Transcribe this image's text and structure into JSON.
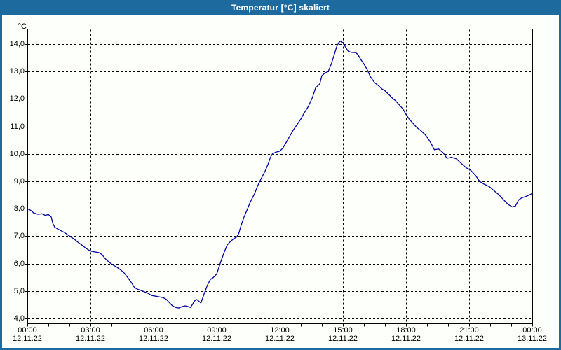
{
  "window": {
    "title": "Temperatur [°C] skaliert",
    "title_bar_color": "#1d6a9e",
    "frame_color": "#1d6a9e",
    "content_background": "#fdfffb"
  },
  "chart_data": {
    "type": "line",
    "title": "Temperatur [°C] skaliert",
    "xlabel": "",
    "ylabel": "°C",
    "ylim": [
      4.0,
      14.0
    ],
    "xlim_hours": [
      0,
      24
    ],
    "grid": "dashed-black",
    "legend": "none",
    "line_color": "#0000a0",
    "y_axis": {
      "unit": "°C",
      "ticks": [
        {
          "label": "14,0",
          "value": 14.0
        },
        {
          "label": "13,0",
          "value": 13.0
        },
        {
          "label": "12,0",
          "value": 12.0
        },
        {
          "label": "11,0",
          "value": 11.0
        },
        {
          "label": "10,0",
          "value": 10.0
        },
        {
          "label": "9,0",
          "value": 9.0
        },
        {
          "label": "8,0",
          "value": 8.0
        },
        {
          "label": "7,0",
          "value": 7.0
        },
        {
          "label": "6,0",
          "value": 6.0
        },
        {
          "label": "5,0",
          "value": 5.0
        },
        {
          "label": "4,0",
          "value": 4.0
        }
      ]
    },
    "x_axis": {
      "minor_tick_every_hours": 1,
      "ticks": [
        {
          "time": "00:00",
          "date": "12.11.22",
          "hour": 0
        },
        {
          "time": "03:00",
          "date": "12.11.22",
          "hour": 3
        },
        {
          "time": "06:00",
          "date": "12.11.22",
          "hour": 6
        },
        {
          "time": "09:00",
          "date": "12.11.22",
          "hour": 9
        },
        {
          "time": "12:00",
          "date": "12.11.22",
          "hour": 12
        },
        {
          "time": "15:00",
          "date": "12.11.22",
          "hour": 15
        },
        {
          "time": "18:00",
          "date": "12.11.22",
          "hour": 18
        },
        {
          "time": "21:00",
          "date": "12.11.22",
          "hour": 21
        },
        {
          "time": "00:00",
          "date": "13.11.22",
          "hour": 24
        }
      ]
    },
    "series_name": "Temperatur",
    "points": [
      [
        0.0,
        8.0
      ],
      [
        0.15,
        7.95
      ],
      [
        0.3,
        7.85
      ],
      [
        0.5,
        7.8
      ],
      [
        0.7,
        7.82
      ],
      [
        0.85,
        7.76
      ],
      [
        1.0,
        7.79
      ],
      [
        1.13,
        7.71
      ],
      [
        1.22,
        7.45
      ],
      [
        1.3,
        7.33
      ],
      [
        1.45,
        7.26
      ],
      [
        1.6,
        7.2
      ],
      [
        1.75,
        7.14
      ],
      [
        1.9,
        7.06
      ],
      [
        2.05,
        6.98
      ],
      [
        2.25,
        6.88
      ],
      [
        2.4,
        6.78
      ],
      [
        2.6,
        6.67
      ],
      [
        2.75,
        6.58
      ],
      [
        2.9,
        6.5
      ],
      [
        3.05,
        6.45
      ],
      [
        3.25,
        6.42
      ],
      [
        3.4,
        6.4
      ],
      [
        3.55,
        6.33
      ],
      [
        3.7,
        6.18
      ],
      [
        3.9,
        6.04
      ],
      [
        4.05,
        5.96
      ],
      [
        4.25,
        5.87
      ],
      [
        4.4,
        5.79
      ],
      [
        4.6,
        5.66
      ],
      [
        4.9,
        5.36
      ],
      [
        5.1,
        5.12
      ],
      [
        5.25,
        5.06
      ],
      [
        5.4,
        5.02
      ],
      [
        5.6,
        4.96
      ],
      [
        5.75,
        4.91
      ],
      [
        5.9,
        4.84
      ],
      [
        6.1,
        4.81
      ],
      [
        6.3,
        4.78
      ],
      [
        6.45,
        4.76
      ],
      [
        6.6,
        4.7
      ],
      [
        6.75,
        4.58
      ],
      [
        6.9,
        4.46
      ],
      [
        7.05,
        4.4
      ],
      [
        7.2,
        4.38
      ],
      [
        7.35,
        4.43
      ],
      [
        7.5,
        4.46
      ],
      [
        7.65,
        4.43
      ],
      [
        7.75,
        4.4
      ],
      [
        7.85,
        4.51
      ],
      [
        7.95,
        4.64
      ],
      [
        8.05,
        4.69
      ],
      [
        8.15,
        4.63
      ],
      [
        8.25,
        4.56
      ],
      [
        8.4,
        4.89
      ],
      [
        8.55,
        5.2
      ],
      [
        8.7,
        5.42
      ],
      [
        8.85,
        5.5
      ],
      [
        9.0,
        5.62
      ],
      [
        9.1,
        5.85
      ],
      [
        9.2,
        6.08
      ],
      [
        9.35,
        6.4
      ],
      [
        9.5,
        6.68
      ],
      [
        9.65,
        6.8
      ],
      [
        9.8,
        6.9
      ],
      [
        9.95,
        6.97
      ],
      [
        10.05,
        7.1
      ],
      [
        10.15,
        7.37
      ],
      [
        10.3,
        7.7
      ],
      [
        10.45,
        7.97
      ],
      [
        10.6,
        8.25
      ],
      [
        10.8,
        8.55
      ],
      [
        10.95,
        8.84
      ],
      [
        11.1,
        9.08
      ],
      [
        11.3,
        9.37
      ],
      [
        11.45,
        9.64
      ],
      [
        11.55,
        9.87
      ],
      [
        11.65,
        10.0
      ],
      [
        11.8,
        10.06
      ],
      [
        12.0,
        10.1
      ],
      [
        12.15,
        10.22
      ],
      [
        12.35,
        10.48
      ],
      [
        12.5,
        10.68
      ],
      [
        12.65,
        10.88
      ],
      [
        12.8,
        11.04
      ],
      [
        13.0,
        11.27
      ],
      [
        13.15,
        11.48
      ],
      [
        13.35,
        11.72
      ],
      [
        13.55,
        12.05
      ],
      [
        13.7,
        12.4
      ],
      [
        13.9,
        12.55
      ],
      [
        14.0,
        12.85
      ],
      [
        14.15,
        12.95
      ],
      [
        14.3,
        13.0
      ],
      [
        14.45,
        13.28
      ],
      [
        14.6,
        13.64
      ],
      [
        14.7,
        13.9
      ],
      [
        14.8,
        14.05
      ],
      [
        14.9,
        14.12
      ],
      [
        14.95,
        14.04
      ],
      [
        15.0,
        14.07
      ],
      [
        15.1,
        13.92
      ],
      [
        15.25,
        13.74
      ],
      [
        15.4,
        13.7
      ],
      [
        15.6,
        13.69
      ],
      [
        15.7,
        13.63
      ],
      [
        15.85,
        13.44
      ],
      [
        16.0,
        13.27
      ],
      [
        16.15,
        13.08
      ],
      [
        16.3,
        12.82
      ],
      [
        16.5,
        12.6
      ],
      [
        16.7,
        12.48
      ],
      [
        16.85,
        12.37
      ],
      [
        17.0,
        12.3
      ],
      [
        17.2,
        12.15
      ],
      [
        17.35,
        12.03
      ],
      [
        17.5,
        11.94
      ],
      [
        17.7,
        11.77
      ],
      [
        17.85,
        11.64
      ],
      [
        18.0,
        11.44
      ],
      [
        18.15,
        11.27
      ],
      [
        18.35,
        11.1
      ],
      [
        18.5,
        10.97
      ],
      [
        18.7,
        10.85
      ],
      [
        18.9,
        10.71
      ],
      [
        19.05,
        10.56
      ],
      [
        19.2,
        10.37
      ],
      [
        19.35,
        10.15
      ],
      [
        19.55,
        10.18
      ],
      [
        19.75,
        10.05
      ],
      [
        19.95,
        9.84
      ],
      [
        20.15,
        9.88
      ],
      [
        20.4,
        9.82
      ],
      [
        20.6,
        9.67
      ],
      [
        20.85,
        9.5
      ],
      [
        21.05,
        9.42
      ],
      [
        21.3,
        9.22
      ],
      [
        21.5,
        9.0
      ],
      [
        21.7,
        8.9
      ],
      [
        21.95,
        8.81
      ],
      [
        22.15,
        8.68
      ],
      [
        22.4,
        8.52
      ],
      [
        22.6,
        8.36
      ],
      [
        22.85,
        8.16
      ],
      [
        23.05,
        8.07
      ],
      [
        23.2,
        8.1
      ],
      [
        23.35,
        8.32
      ],
      [
        23.5,
        8.4
      ],
      [
        23.7,
        8.45
      ],
      [
        23.9,
        8.52
      ],
      [
        24.0,
        8.56
      ]
    ]
  }
}
